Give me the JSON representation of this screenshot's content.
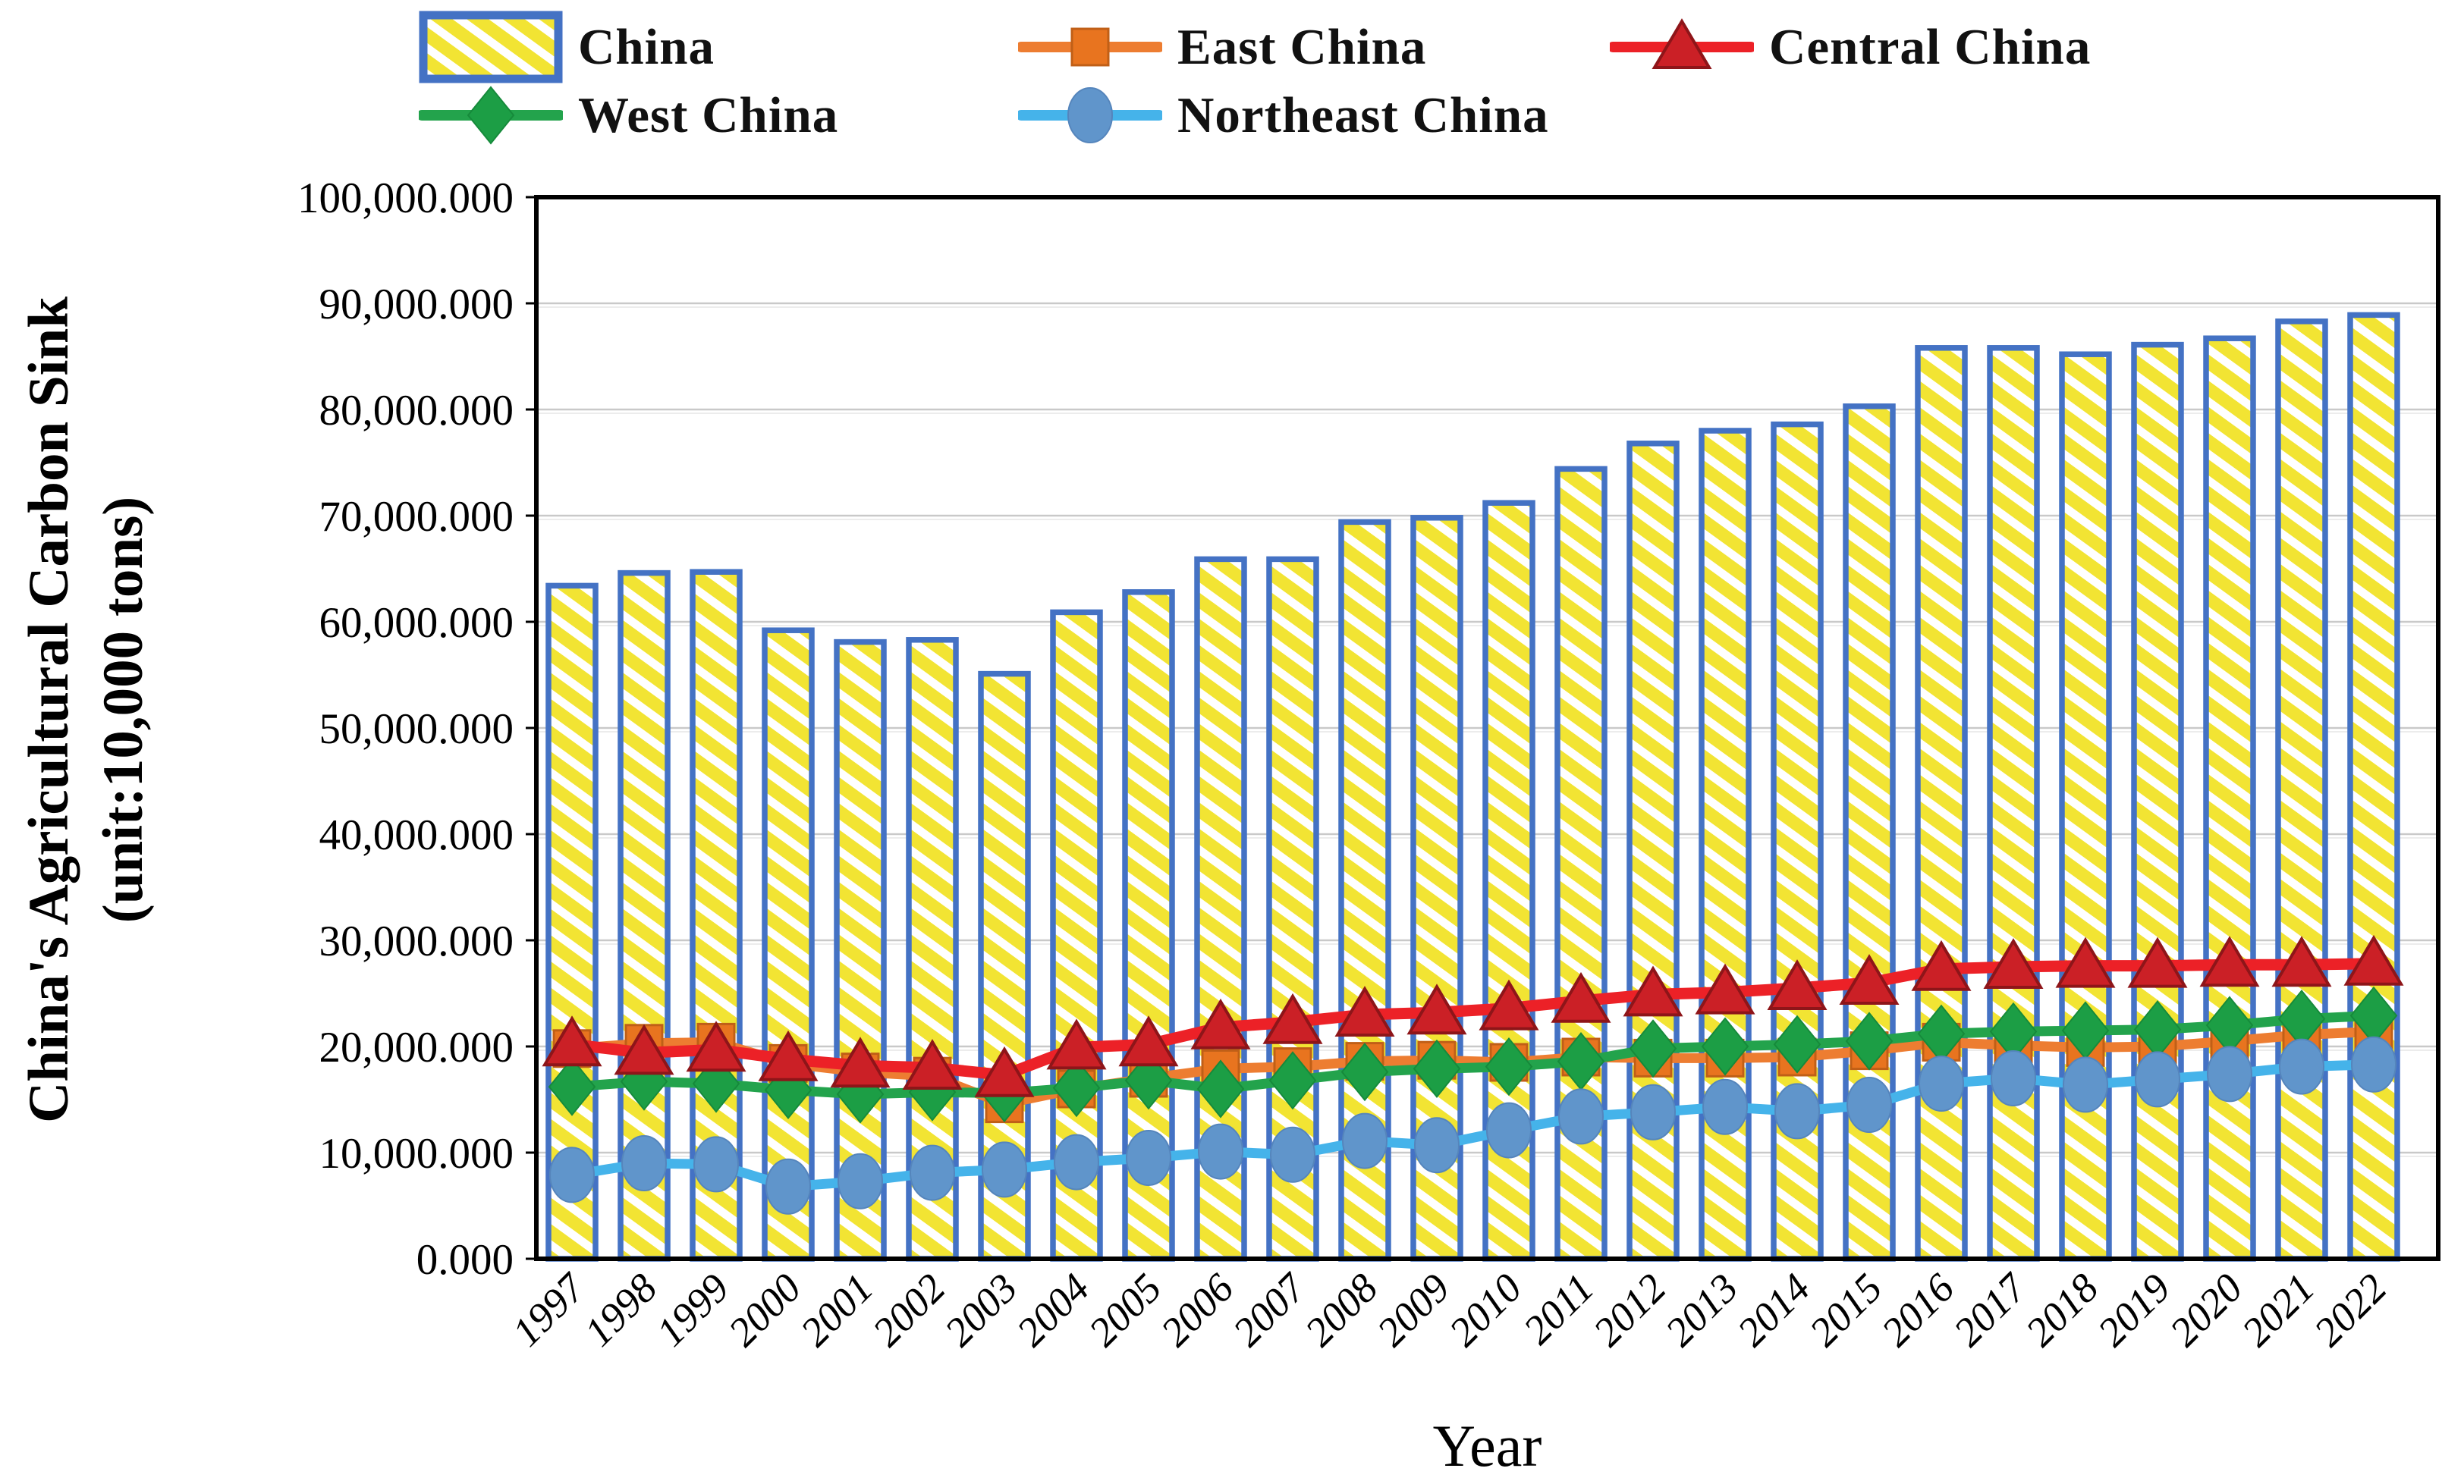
{
  "figure": {
    "y_axis_title_line1": "China's Agricultural Carbon Sink",
    "y_axis_title_line2": "(unit:10,000  tons)",
    "x_axis_title": "Year"
  },
  "legend": {
    "position": "top",
    "items": [
      {
        "label": "China",
        "swatch": "hatched-bar"
      },
      {
        "label": "East China",
        "swatch": "line-square"
      },
      {
        "label": "Central China",
        "swatch": "line-triangle"
      },
      {
        "label": "West China",
        "swatch": "line-diamond"
      },
      {
        "label": "Northeast China",
        "swatch": "line-circle"
      }
    ]
  },
  "colors": {
    "bar_fill_yellow": "#F2E433",
    "bar_border_blue": "#4472C4",
    "east_china": "#ED7D31",
    "east_china_marker": "#E8741F",
    "central_china": "#EC2127",
    "central_china_marker": "#CB2026",
    "west_china": "#23A34C",
    "northeast_china": "#45B3EA",
    "northeast_china_marker": "#6095CB",
    "gridline": "#C9C9C9",
    "frame": "#000000",
    "text": "#000000"
  },
  "chart_data": {
    "type": "bar",
    "subtype": "bar-plus-lines",
    "title": "",
    "xlabel": "Year",
    "ylabel": "China's Agricultural Carbon Sink (unit:10,000 tons)",
    "ylim": [
      0,
      100000
    ],
    "y_tick_step": 10000,
    "grid": true,
    "legend_position": "top",
    "y_tick_labels": [
      "100,000.000",
      "90,000.000",
      "80,000.000",
      "70,000.000",
      "60,000.000",
      "50,000.000",
      "40,000.000",
      "30,000.000",
      "20,000.000",
      "10,000.000",
      "0.000"
    ],
    "categories": [
      "1997",
      "1998",
      "1999",
      "2000",
      "2001",
      "2002",
      "2003",
      "2004",
      "2005",
      "2006",
      "2007",
      "2008",
      "2009",
      "2010",
      "2011",
      "2012",
      "2013",
      "2014",
      "2015",
      "2016",
      "2017",
      "2018",
      "2019",
      "2020",
      "2021",
      "2022"
    ],
    "bar_series": {
      "name": "China",
      "values": [
        63400,
        64600,
        64700,
        59200,
        58100,
        58300,
        55100,
        60900,
        62800,
        65900,
        65900,
        69400,
        69800,
        71200,
        74400,
        76800,
        78000,
        78600,
        80300,
        85800,
        85800,
        85200,
        86100,
        86700,
        88300,
        88900
      ]
    },
    "line_series": [
      {
        "name": "East China",
        "marker": "square",
        "color": "#ED7D31",
        "marker_color": "#E8741F",
        "marker_edge": "#C05F17",
        "values": [
          19800,
          20300,
          20400,
          18400,
          17600,
          17200,
          14600,
          16000,
          17000,
          17900,
          18100,
          18600,
          18700,
          18500,
          19000,
          18900,
          18900,
          19000,
          19600,
          20400,
          20100,
          19900,
          20000,
          20500,
          21100,
          21400
        ]
      },
      {
        "name": "West China",
        "marker": "diamond",
        "color": "#23A34C",
        "marker_color": "#1C9E45",
        "marker_edge": "#168A3B",
        "values": [
          16200,
          16700,
          16500,
          15900,
          15500,
          15700,
          15600,
          16100,
          16800,
          16000,
          16800,
          17600,
          17900,
          18100,
          18600,
          19800,
          20000,
          20200,
          20500,
          21200,
          21400,
          21500,
          21600,
          22000,
          22600,
          22900
        ]
      },
      {
        "name": "Northeast China",
        "marker": "circle",
        "color": "#45B3EA",
        "marker_color": "#6095CB",
        "marker_edge": "#5585BC",
        "values": [
          7900,
          9000,
          8900,
          6800,
          7300,
          8100,
          8400,
          9100,
          9500,
          10100,
          9800,
          11100,
          10700,
          12100,
          13400,
          13800,
          14300,
          13900,
          14500,
          16500,
          17000,
          16400,
          16900,
          17400,
          18100,
          18300
        ]
      },
      {
        "name": "Central China",
        "marker": "triangle",
        "color": "#EC2127",
        "marker_color": "#CB2026",
        "marker_edge": "#8E1519",
        "values": [
          20200,
          19400,
          19700,
          18800,
          18200,
          18000,
          17300,
          19900,
          20200,
          21800,
          22300,
          23000,
          23200,
          23600,
          24300,
          24900,
          25100,
          25500,
          26000,
          27300,
          27500,
          27600,
          27600,
          27700,
          27700,
          27800
        ]
      }
    ]
  }
}
